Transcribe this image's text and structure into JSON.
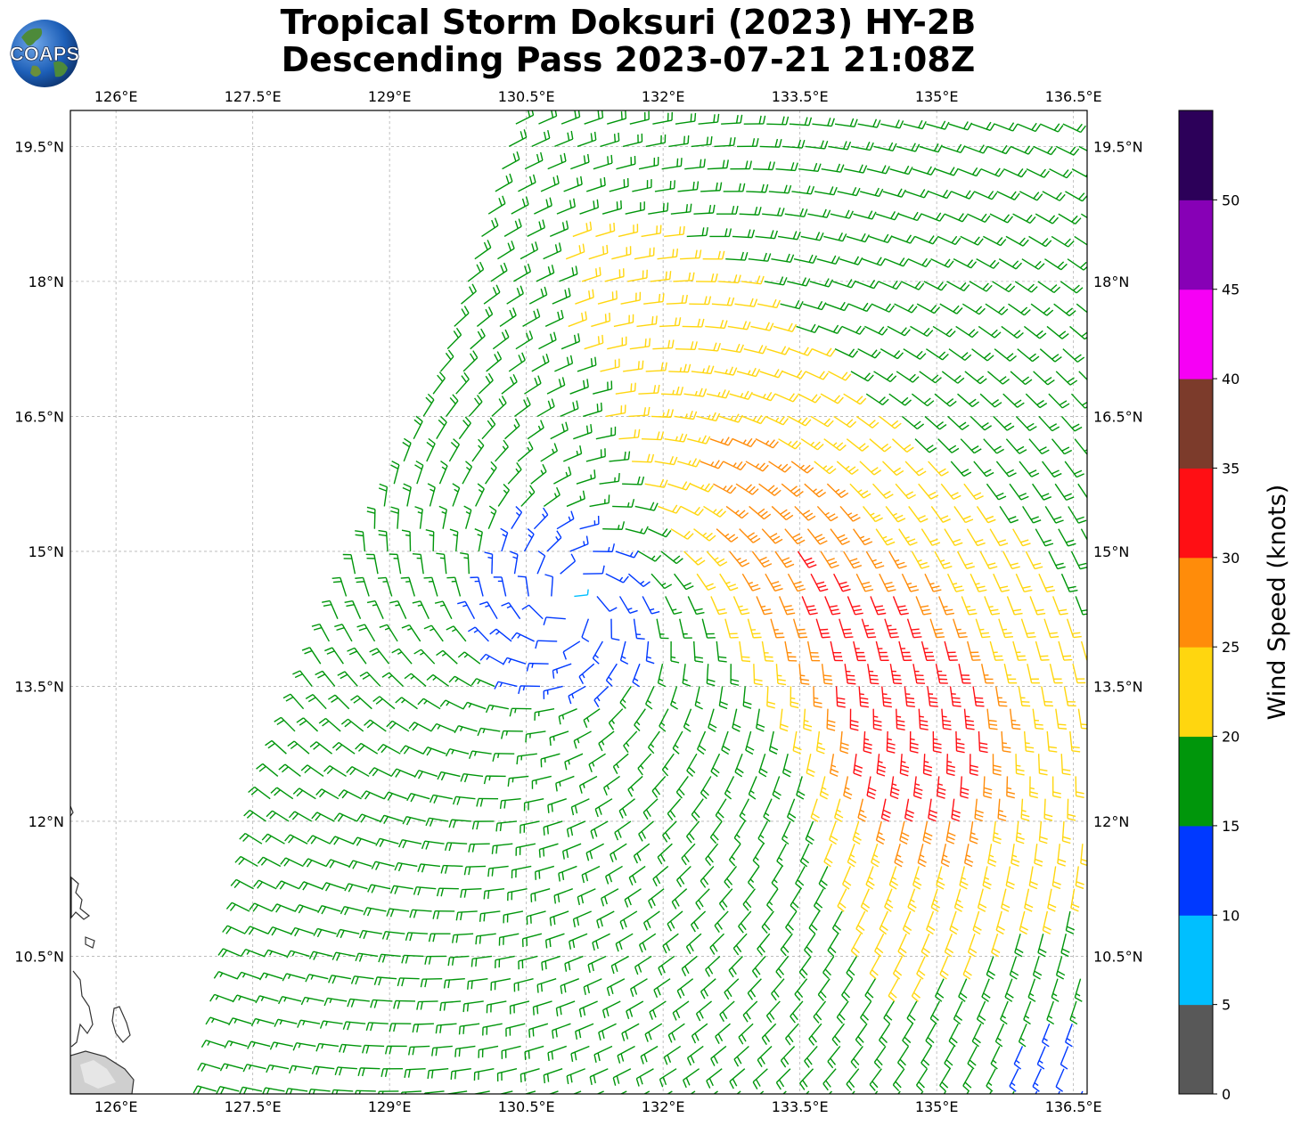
{
  "title": {
    "line1": "Tropical Storm Doksuri (2023) HY-2B",
    "line2": "Descending Pass 2023-07-21 21:08Z"
  },
  "logo": {
    "text": "COAPS"
  },
  "axes": {
    "lon_labels": [
      "126°E",
      "127.5°E",
      "129°E",
      "130.5°E",
      "132°E",
      "133.5°E",
      "135°E",
      "136.5°E"
    ],
    "lat_labels": [
      "19.5°N",
      "18°N",
      "16.5°N",
      "15°N",
      "13.5°N",
      "12°N",
      "10.5°N"
    ],
    "lon_ticks": [
      126,
      127.5,
      129,
      130.5,
      132,
      133.5,
      135,
      136.5
    ],
    "lat_ticks": [
      19.5,
      18,
      16.5,
      15,
      13.5,
      12,
      10.5
    ],
    "lon_range": [
      125.5,
      136.65
    ],
    "lat_range": [
      8.97,
      19.9
    ],
    "grid": true
  },
  "colorbar": {
    "label": "Wind Speed (knots)",
    "tick_labels": [
      "0",
      "5",
      "10",
      "15",
      "20",
      "25",
      "30",
      "35",
      "40",
      "45",
      "50"
    ],
    "bins": [
      {
        "from": 0,
        "to": 5,
        "color": "#585858"
      },
      {
        "from": 5,
        "to": 10,
        "color": "#00bfff"
      },
      {
        "from": 10,
        "to": 15,
        "color": "#0039ff"
      },
      {
        "from": 15,
        "to": 20,
        "color": "#00960b"
      },
      {
        "from": 20,
        "to": 25,
        "color": "#ffd60f"
      },
      {
        "from": 25,
        "to": 30,
        "color": "#ff8c0a"
      },
      {
        "from": 30,
        "to": 35,
        "color": "#ff0f14"
      },
      {
        "from": 35,
        "to": 40,
        "color": "#7c3b2b"
      },
      {
        "from": 40,
        "to": 45,
        "color": "#f600f5"
      },
      {
        "from": 45,
        "to": 50,
        "color": "#8700b6"
      },
      {
        "from": 50,
        "to": 55,
        "color": "#2c0059"
      }
    ]
  },
  "storm": {
    "center_lon": 131.0,
    "center_lat": 14.4,
    "swath_left_edge": [
      [
        130.4,
        19.8
      ],
      [
        129.5,
        16.8
      ],
      [
        128.6,
        14.7
      ],
      [
        127.7,
        12.3
      ],
      [
        127.1,
        9.0
      ]
    ]
  }
}
